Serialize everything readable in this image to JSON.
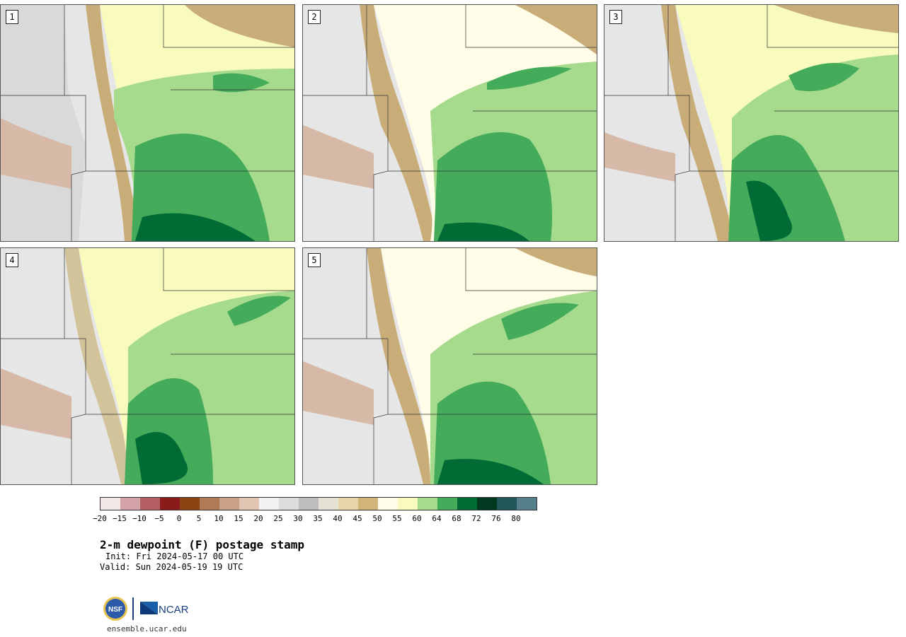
{
  "panels": [
    {
      "label": "1"
    },
    {
      "label": "2"
    },
    {
      "label": "3"
    },
    {
      "label": "4"
    },
    {
      "label": "5"
    }
  ],
  "colorbar": {
    "colors": [
      "#f3e6e6",
      "#d3a2a6",
      "#b35f63",
      "#8b1a1a",
      "#8b4513",
      "#b07a55",
      "#c9a088",
      "#e2c6b4",
      "#f2f2f2",
      "#dcdcdc",
      "#bdbdbd",
      "#e4e2d4",
      "#e6d6a8",
      "#d2b57a",
      "#fffde8",
      "#f8fbbc",
      "#a6da8c",
      "#43ab5a",
      "#006b35",
      "#00391f",
      "#1f5758",
      "#56808a"
    ],
    "ticks": [
      "−20",
      "−15",
      "−10",
      "−5",
      "0",
      "5",
      "10",
      "15",
      "20",
      "25",
      "30",
      "35",
      "40",
      "45",
      "50",
      "55",
      "60",
      "64",
      "68",
      "72",
      "76",
      "80"
    ]
  },
  "text": {
    "title": "2-m dewpoint (F) postage stamp",
    "init": "Init: Fri 2024-05-17 00 UTC",
    "valid": "Valid: Sun 2024-05-19 19 UTC",
    "url": "ensemble.ucar.edu",
    "nsf": "NSF",
    "ncar": "NCAR"
  }
}
